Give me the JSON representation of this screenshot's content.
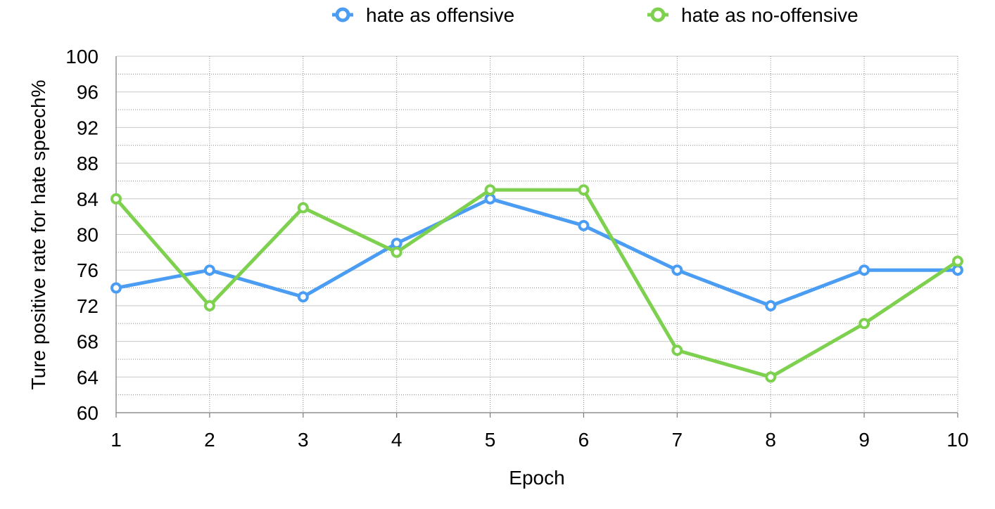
{
  "chart_data": {
    "type": "line",
    "title": "",
    "xlabel": "Epoch",
    "ylabel": "Ture positive rate for hate speech%",
    "x": [
      1,
      2,
      3,
      4,
      5,
      6,
      7,
      8,
      9,
      10
    ],
    "xlim": [
      1,
      10
    ],
    "ylim": [
      60,
      100
    ],
    "y_ticks": [
      60,
      64,
      68,
      72,
      76,
      80,
      84,
      88,
      92,
      96,
      100
    ],
    "grid": true,
    "legend_position": "top",
    "series": [
      {
        "name": "hate as offensive",
        "color": "#4a9df2",
        "marker": "hollow-circle",
        "values": [
          74,
          76,
          73,
          79,
          84,
          81,
          76,
          72,
          76,
          76
        ]
      },
      {
        "name": "hate as no-offensive",
        "color": "#7ed04f",
        "marker": "hollow-circle",
        "values": [
          84,
          72,
          83,
          78,
          85,
          85,
          67,
          64,
          70,
          77
        ]
      }
    ]
  }
}
